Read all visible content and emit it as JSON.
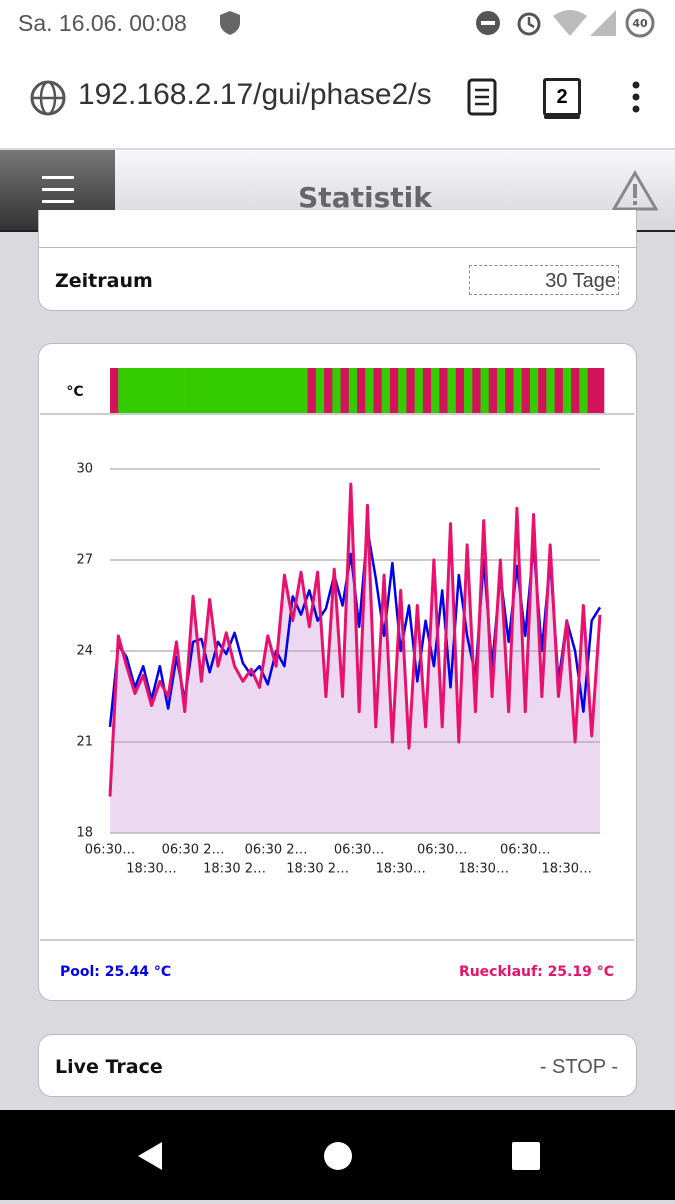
{
  "status_bar": {
    "time": "Sa. 16.06. 00:08",
    "battery": "40"
  },
  "browser": {
    "url": "192.168.2.17/gui/phase2/s",
    "tab_count": "2"
  },
  "header": {
    "title": "Statistik"
  },
  "zeitraum": {
    "label": "Zeitraum",
    "value": "30 Tage"
  },
  "chart_data": {
    "type": "line",
    "y_label": "°C",
    "ylim": [
      18,
      30
    ],
    "yticks": [
      18,
      21,
      24,
      27,
      30
    ],
    "grid": true,
    "categories": [
      "06:30…",
      null,
      null,
      null,
      null,
      "18:30…",
      null,
      null,
      null,
      null,
      "06:30 2…",
      null,
      null,
      null,
      null,
      "18:30 2…",
      null,
      null,
      null,
      null,
      "06:30 2…",
      null,
      null,
      null,
      null,
      "18:30 2…",
      null,
      null,
      null,
      null,
      "06:30…",
      null,
      null,
      null,
      null,
      "18:30…",
      null,
      null,
      null,
      null,
      "06:30…",
      null,
      null,
      null,
      null,
      "18:30…",
      null,
      null,
      null,
      null,
      "06:30…",
      null,
      null,
      null,
      null,
      "18:30…",
      null,
      null,
      null,
      null
    ],
    "status_colors": [
      "#33cc00",
      "#d4145a"
    ],
    "status": [
      1,
      0,
      0,
      0,
      0,
      0,
      0,
      0,
      0,
      0,
      0,
      0,
      0,
      0,
      0,
      0,
      0,
      0,
      0,
      0,
      0,
      0,
      0,
      0,
      1,
      0,
      1,
      0,
      1,
      0,
      1,
      0,
      1,
      0,
      1,
      0,
      1,
      0,
      1,
      0,
      1,
      0,
      1,
      0,
      1,
      0,
      1,
      0,
      1,
      0,
      1,
      0,
      1,
      0,
      1,
      0,
      1,
      0,
      1,
      1
    ],
    "area_color": "#ecd8f0",
    "series": [
      {
        "name": "Pool: 25.44 °C",
        "color": "#0000ee",
        "values": [
          21.5,
          24.2,
          23.8,
          22.8,
          23.5,
          22.4,
          23.5,
          22.1,
          23.8,
          22.4,
          24.3,
          24.4,
          23.3,
          24.3,
          23.9,
          24.6,
          23.6,
          23.2,
          23.5,
          22.9,
          24.0,
          23.5,
          25.8,
          25.2,
          26.0,
          25.0,
          25.4,
          26.5,
          25.5,
          27.2,
          24.8,
          28.0,
          26.4,
          24.5,
          26.9,
          24.0,
          25.5,
          23.0,
          25.0,
          23.5,
          26.0,
          22.8,
          26.5,
          24.5,
          23.2,
          27.0,
          23.5,
          26.5,
          24.3,
          26.8,
          24.5,
          27.5,
          24.0,
          27.0,
          23.0,
          25.0,
          24.0,
          22.0,
          25.0,
          25.44
        ]
      },
      {
        "name": "Ruecklauf: 25.19 °C",
        "color": "#e8126e",
        "values": [
          19.2,
          24.5,
          23.5,
          22.6,
          23.2,
          22.2,
          23.0,
          22.5,
          24.3,
          22.0,
          25.8,
          23.0,
          25.7,
          23.5,
          24.6,
          23.5,
          23.0,
          23.4,
          22.8,
          24.5,
          23.5,
          26.5,
          25.0,
          26.6,
          24.8,
          26.6,
          22.5,
          26.7,
          22.5,
          29.5,
          22.0,
          28.8,
          21.5,
          26.5,
          21.0,
          26.0,
          20.8,
          25.5,
          21.5,
          27.0,
          21.5,
          28.2,
          21.0,
          27.5,
          22.0,
          28.3,
          22.5,
          27.0,
          22.0,
          28.7,
          22.0,
          28.5,
          22.5,
          27.5,
          22.5,
          25.0,
          21.0,
          25.5,
          21.2,
          25.19
        ]
      }
    ]
  },
  "live_trace": {
    "label": "Live Trace",
    "value": "- STOP -"
  }
}
